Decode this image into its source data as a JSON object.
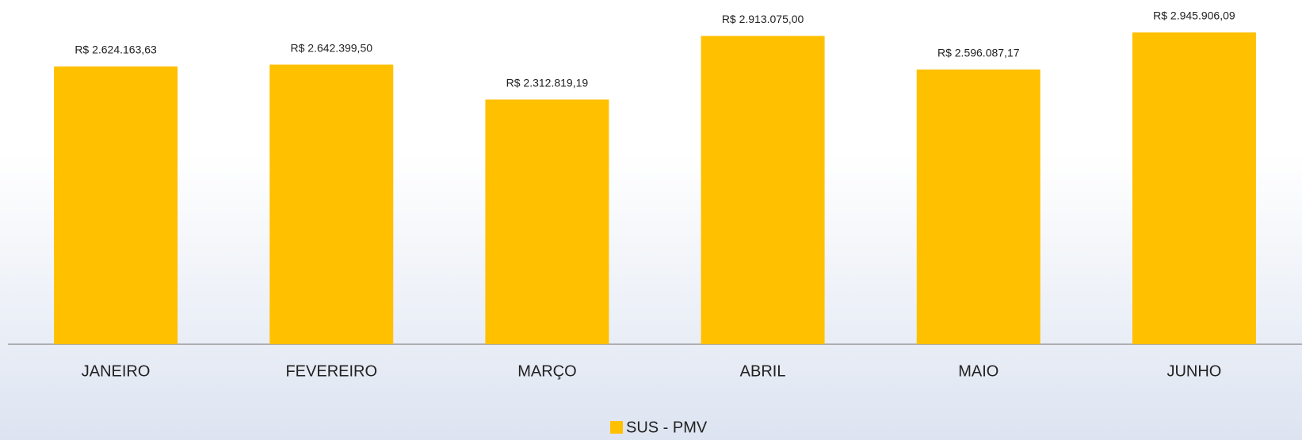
{
  "chart_data": {
    "type": "bar",
    "categories": [
      "JANEIRO",
      "FEVEREIRO",
      "MARÇO",
      "ABRIL",
      "MAIO",
      "JUNHO"
    ],
    "series": [
      {
        "name": "SUS - PMV",
        "color": "#ffc000",
        "values": [
          2624163.63,
          2642399.5,
          2312819.19,
          2913075.0,
          2596087.17,
          2945906.09
        ],
        "value_labels": [
          "R$ 2.624.163,63",
          "R$ 2.642.399,50",
          "R$ 2.312.819,19",
          "R$ 2.913.075,00",
          "R$ 2.596.087,17",
          "R$ 2.945.906,09"
        ]
      }
    ]
  }
}
